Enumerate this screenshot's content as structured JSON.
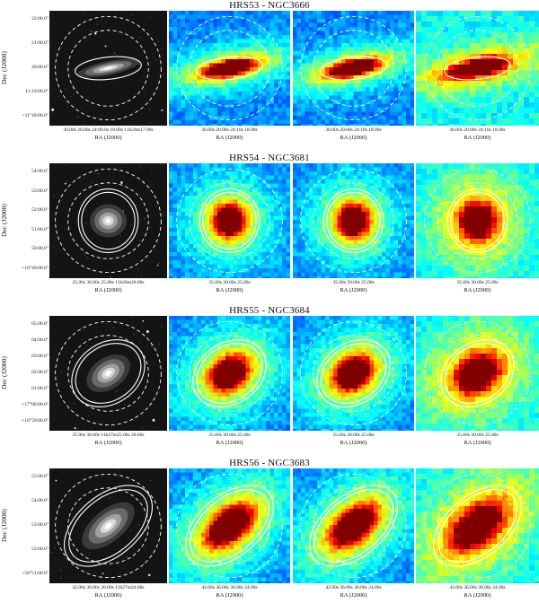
{
  "rows": [
    {
      "title": "HRS53 - NGC3666",
      "y_axis_label": "Dec (J2000)",
      "y_ticks": [
        "22:00.0\"",
        "21:00.0\"",
        "20:00.0\"",
        "11:19:00.0\"",
        "+11°18:00.0\""
      ],
      "x_label": "RA (J2000)",
      "x_ticks_optical": "30.00s 20.00s 24:00.0s 18.00s 11h24m17.00s",
      "x_ticks_map": "30.00s 20.00s 24:10s 18.00s",
      "galaxy": {
        "shape": "edge-on",
        "aspect": 0.22,
        "angle": -12,
        "scale": 0.55
      }
    },
    {
      "title": "HRS54 - NGC3681",
      "y_axis_label": "Dec (J2000)",
      "y_ticks": [
        "54:00.0\"",
        "53:00.0\"",
        "52:00.0\"",
        "51:00.0\"",
        "50:00.0\"",
        "+16°49:00.0\""
      ],
      "x_label": "RA (J2000)",
      "x_ticks_optical": "35.00s 30.00s 25.00s 11h26m20.00s",
      "x_ticks_map": "35.00s 30.00s 25.00s",
      "galaxy": {
        "shape": "round",
        "aspect": 0.9,
        "angle": 0,
        "scale": 0.32
      }
    },
    {
      "title": "HRS55 - NGC3684",
      "y_axis_label": "Dec (J2000)",
      "y_ticks": [
        "05:00.0\"",
        "04:00.0\"",
        "03:00.0\"",
        "02:00.0\"",
        "01:00.0\"",
        "+17°00:00.0\"",
        "+16°59:00.0\""
      ],
      "x_label": "RA (J2000)",
      "x_ticks_optical": "35.00s 30.00s 11h27m25.00s 20.00s",
      "x_ticks_map": "35.00s 30.00s 25.00s",
      "galaxy": {
        "shape": "oval",
        "aspect": 0.65,
        "angle": -35,
        "scale": 0.42
      }
    },
    {
      "title": "HRS56 - NGC3683",
      "y_axis_label": "Dec (J2000)",
      "y_ticks": [
        "55:00.0\"",
        "54:00.0\"",
        "53:00.0\"",
        "52:00.0\"",
        "+56°51:00.0\""
      ],
      "x_label": "RA (J2000)",
      "x_ticks_optical": "42.00s 36.00s 30.00s 11h27m24.00s",
      "x_ticks_map": "42.00s 36.00s 30.00s 24.00s",
      "galaxy": {
        "shape": "inclined",
        "aspect": 0.5,
        "angle": -40,
        "scale": 0.55
      }
    }
  ]
}
